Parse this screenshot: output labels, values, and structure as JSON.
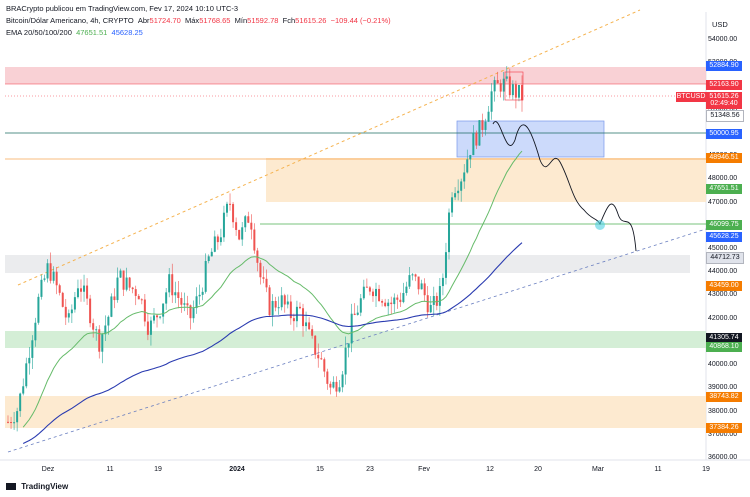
{
  "header": {
    "publish_line": "BRACrypto publicou em TradingView.com, Fev 17, 2024 10:10 UTC-3",
    "symbol_line": "Bitcoin/Dólar Americano, 4h, CRYPTO",
    "ohlc": {
      "open_label": "Abr",
      "open": "51724.70",
      "high_label": "Máx",
      "high": "51768.65",
      "low_label": "Mín",
      "low": "51592.78",
      "close_label": "Fch",
      "close": "51615.26",
      "change": "−109.44 (−0.21%)"
    },
    "ema_line": "EMA 20/50/100/200",
    "ema_values": [
      "47651.51",
      "45628.25"
    ]
  },
  "currency": "USD",
  "price_axis": {
    "ticks": [
      "54000.00",
      "53000.00",
      "52000.00",
      "51000.00",
      "50000.00",
      "49000.00",
      "48000.00",
      "47000.00",
      "46000.00",
      "45000.00",
      "44000.00",
      "43000.00",
      "42000.00",
      "41000.00",
      "40000.00",
      "39000.00",
      "38000.00",
      "37000.00",
      "36000.00"
    ]
  },
  "price_tags": [
    {
      "text": "52884.90",
      "color": "#2962ff"
    },
    {
      "text": "52163.90",
      "color": "#f23645"
    },
    {
      "text": "BTCUSD",
      "color": "#f23645"
    },
    {
      "text": "51615.26",
      "color": "#f23645"
    },
    {
      "text": "02:49:40",
      "color": "#f23645"
    },
    {
      "text": "51348.56",
      "color": "#ffffff"
    },
    {
      "text": "50000.95",
      "color": "#2962ff"
    },
    {
      "text": "48946.51",
      "color": "#f57c00"
    },
    {
      "text": "47651.51",
      "color": "#4caf50"
    },
    {
      "text": "46099.75",
      "color": "#4caf50"
    },
    {
      "text": "45628.25",
      "color": "#2962ff"
    },
    {
      "text": "44712.73",
      "color": "#e0e3eb"
    },
    {
      "text": "43459.00",
      "color": "#f57c00"
    },
    {
      "text": "41305.74",
      "color": "#131722"
    },
    {
      "text": "40868.10",
      "color": "#4caf50"
    },
    {
      "text": "38743.82",
      "color": "#f57c00"
    },
    {
      "text": "37384.26",
      "color": "#f57c00"
    }
  ],
  "time_axis": {
    "ticks": [
      "Dez",
      "11",
      "19",
      "2024",
      "15",
      "23",
      "Fev",
      "12",
      "20",
      "Mar",
      "11",
      "19"
    ]
  },
  "footer": {
    "brand": "TradingView"
  },
  "chart_data": {
    "type": "line",
    "symbol": "BTCUSD",
    "timeframe": "4h",
    "ylim": [
      36000,
      54500
    ],
    "close_series": [
      37600,
      38200,
      40500,
      42800,
      44300,
      43200,
      41800,
      43700,
      42500,
      41000,
      42200,
      43900,
      43400,
      43200,
      41600,
      42400,
      43600,
      42900,
      42000,
      43100,
      44700,
      45600,
      47100,
      45500,
      46600,
      43900,
      42500,
      42900,
      42200,
      42400,
      41100,
      40300,
      39000,
      39600,
      41700,
      42800,
      43500,
      43100,
      42700,
      43000,
      43800,
      43400,
      42400,
      43200,
      47600,
      48200,
      49600,
      50300,
      51800,
      52200,
      51900,
      51615
    ],
    "ema_20_50_100_200": [
      47651.51,
      45628.25
    ],
    "levels": [
      52884.9,
      52163.9,
      51348.56,
      50000.95,
      48946.51,
      46099.75,
      44712.73,
      43459.0,
      41305.74,
      40868.1,
      38743.82,
      37384.26
    ]
  }
}
